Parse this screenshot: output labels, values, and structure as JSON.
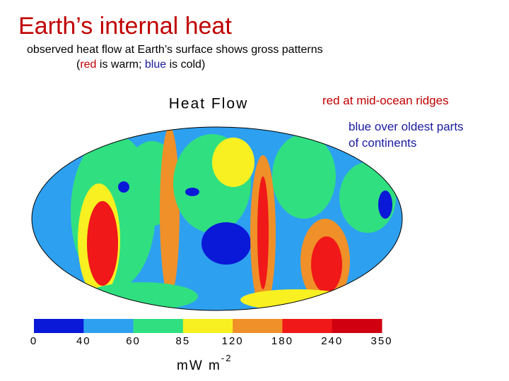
{
  "header": {
    "title": "Earth’s internal heat",
    "subtitle": "observed heat flow at Earth’s surface shows gross patterns",
    "legend_note": {
      "open": "(",
      "warm_word": "red",
      "warm_text": " is warm; ",
      "cold_word": "blue",
      "cold_text": " is cold)"
    }
  },
  "map": {
    "title": "Heat Flow"
  },
  "annotations": {
    "ridges": "red at mid-ocean ridges",
    "continents_line1": "blue over oldest parts",
    "continents_line2": "of continents"
  },
  "colorbar": {
    "colors": [
      "#0a18d8",
      "#2ea0f0",
      "#30e080",
      "#f8f020",
      "#f09028",
      "#f01818",
      "#d00010"
    ],
    "labels": [
      "0",
      "40",
      "60",
      "85",
      "120",
      "180",
      "240",
      "350"
    ],
    "unit": "mW m",
    "unit_exponent": "-2"
  }
}
